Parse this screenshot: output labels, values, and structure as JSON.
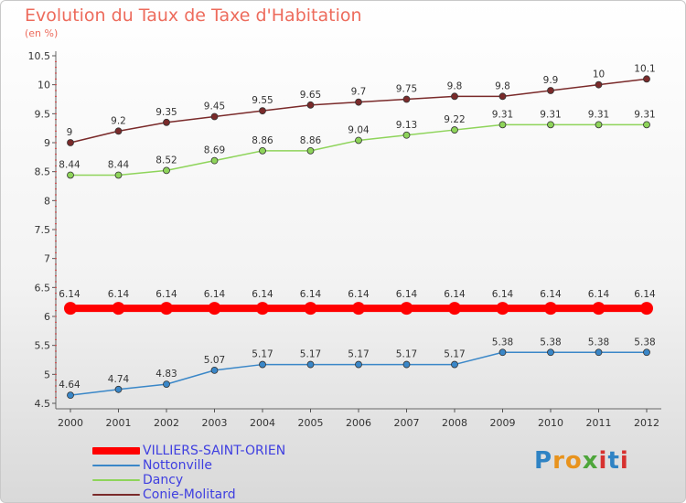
{
  "title": "Evolution du Taux de Taxe d'Habitation",
  "ylabel": "(en %)",
  "logo": {
    "text": "Proxiti",
    "letter_colors": [
      "#2f83c4",
      "#e8931d",
      "#e8931d",
      "#4ea63b",
      "#d7312f",
      "#2f83c4",
      "#d7312f"
    ]
  },
  "chart_data": {
    "type": "line",
    "title": "Evolution du Taux de Taxe d'Habitation",
    "ylabel": "(en %)",
    "xlabel": "",
    "x": [
      "2000",
      "2001",
      "2002",
      "2003",
      "2004",
      "2005",
      "2006",
      "2007",
      "2008",
      "2009",
      "2010",
      "2011",
      "2012"
    ],
    "ylim": [
      4.5,
      10.5
    ],
    "yticks": [
      "4.5",
      "5",
      "5.5",
      "6",
      "6.5",
      "7",
      "7.5",
      "8",
      "8.5",
      "9",
      "9.5",
      "10",
      "10.5"
    ],
    "grid": false,
    "legend_position": "bottom-left",
    "series": [
      {
        "name": "VILLIERS-SAINT-ORIEN",
        "color": "#ff0000",
        "bold": true,
        "values": [
          6.14,
          6.14,
          6.14,
          6.14,
          6.14,
          6.14,
          6.14,
          6.14,
          6.14,
          6.14,
          6.14,
          6.14,
          6.14
        ],
        "labels": [
          "6.14",
          "6.14",
          "6.14",
          "6.14",
          "6.14",
          "6.14",
          "6.14",
          "6.14",
          "6.14",
          "6.14",
          "6.14",
          "6.14",
          "6.14"
        ]
      },
      {
        "name": "Nottonville",
        "color": "#3a87c8",
        "values": [
          4.64,
          4.74,
          4.83,
          5.07,
          5.17,
          5.17,
          5.17,
          5.17,
          5.17,
          5.38,
          5.38,
          5.38,
          5.38
        ],
        "labels": [
          "4.64",
          "4.74",
          "4.83",
          "5.07",
          "5.17",
          "5.17",
          "5.17",
          "5.17",
          "5.17",
          "5.38",
          "5.38",
          "5.38",
          "5.38"
        ]
      },
      {
        "name": "Dancy",
        "color": "#8ed45a",
        "values": [
          8.44,
          8.44,
          8.52,
          8.69,
          8.86,
          8.86,
          9.04,
          9.13,
          9.22,
          9.31,
          9.31,
          9.31,
          9.31
        ],
        "labels": [
          "8.44",
          "8.44",
          "8.52",
          "8.69",
          "8.86",
          "8.86",
          "9.04",
          "9.13",
          "9.22",
          "9.31",
          "9.31",
          "9.31",
          "9.31"
        ]
      },
      {
        "name": "Conie-Molitard",
        "color": "#7a2a2a",
        "values": [
          9,
          9.2,
          9.35,
          9.45,
          9.55,
          9.65,
          9.7,
          9.75,
          9.8,
          9.8,
          9.9,
          10,
          10.1
        ],
        "labels": [
          "9",
          "9.2",
          "9.35",
          "9.45",
          "9.55",
          "9.65",
          "9.7",
          "9.75",
          "9.8",
          "9.8",
          "9.9",
          "10",
          "10.1"
        ]
      }
    ]
  }
}
